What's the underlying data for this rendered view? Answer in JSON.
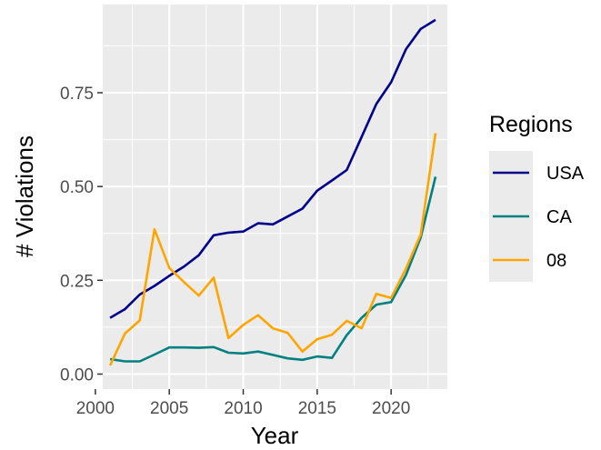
{
  "chart_data": {
    "type": "line",
    "title": "",
    "xlabel": "Year",
    "ylabel": "# Violations",
    "xlim": [
      2000.5,
      2023.8
    ],
    "ylim": [
      -0.04,
      0.985
    ],
    "x_ticks": [
      2000,
      2005,
      2010,
      2015,
      2020
    ],
    "x_tick_labels": [
      "2000",
      "2005",
      "2010",
      "2015",
      "2020"
    ],
    "y_ticks": [
      0.0,
      0.25,
      0.5,
      0.75
    ],
    "y_tick_labels": [
      "0.00",
      "0.25",
      "0.50",
      "0.75"
    ],
    "grid": true,
    "panel_background": "#ebebeb",
    "grid_color": "#ffffff",
    "legend": {
      "title": "Regions",
      "position": "right"
    },
    "x": [
      2001,
      2002,
      2003,
      2004,
      2005,
      2006,
      2007,
      2008,
      2009,
      2010,
      2011,
      2012,
      2013,
      2014,
      2015,
      2016,
      2017,
      2018,
      2019,
      2020,
      2021,
      2022,
      2023
    ],
    "series": [
      {
        "name": "USA",
        "color": "#00008b",
        "values": [
          0.15,
          0.173,
          0.212,
          0.235,
          0.262,
          0.287,
          0.317,
          0.37,
          0.377,
          0.38,
          0.402,
          0.399,
          0.42,
          0.441,
          0.489,
          0.516,
          0.544,
          0.632,
          0.72,
          0.778,
          0.866,
          0.92,
          0.944
        ]
      },
      {
        "name": "CA",
        "color": "#008080",
        "values": [
          0.04,
          0.034,
          0.034,
          0.052,
          0.071,
          0.071,
          0.07,
          0.072,
          0.057,
          0.055,
          0.06,
          0.051,
          0.042,
          0.038,
          0.047,
          0.043,
          0.104,
          0.15,
          0.185,
          0.192,
          0.264,
          0.364,
          0.526
        ]
      },
      {
        "name": "08",
        "color": "#ffa500",
        "values": [
          0.023,
          0.108,
          0.143,
          0.386,
          0.283,
          0.245,
          0.209,
          0.257,
          0.096,
          0.131,
          0.157,
          0.122,
          0.11,
          0.06,
          0.093,
          0.105,
          0.142,
          0.122,
          0.214,
          0.203,
          0.281,
          0.372,
          0.642
        ]
      }
    ]
  }
}
